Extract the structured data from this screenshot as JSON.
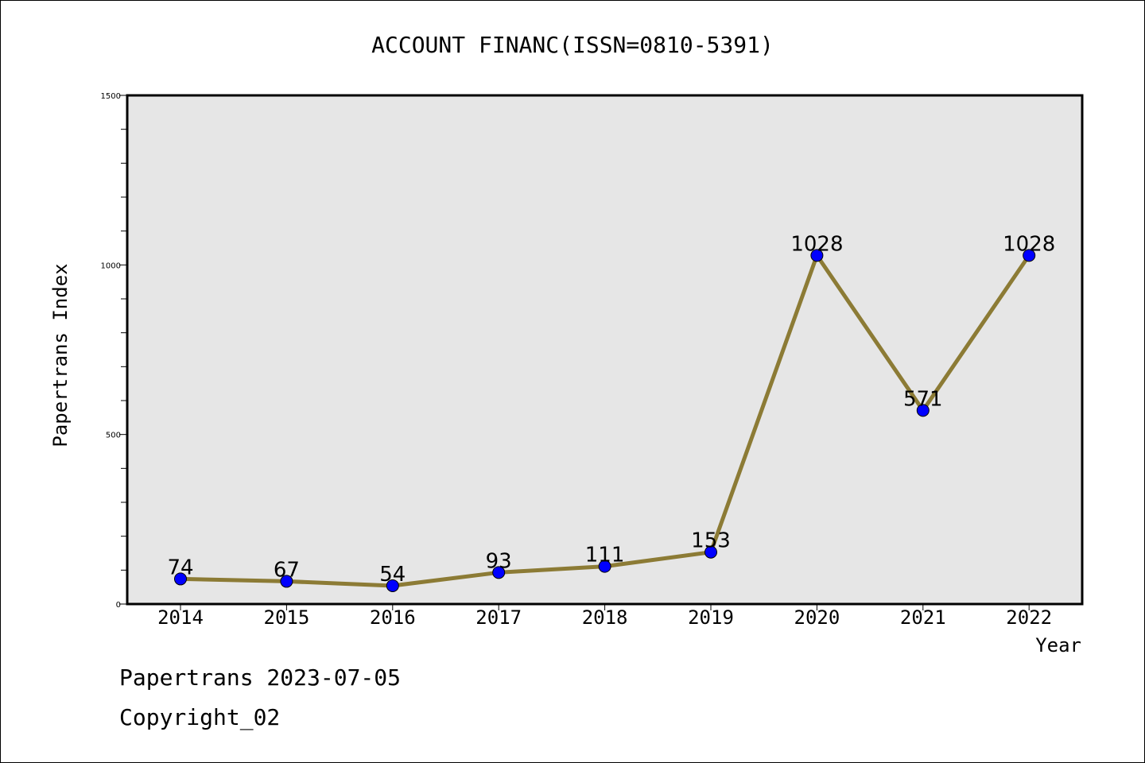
{
  "chart_data": {
    "type": "line",
    "title": "ACCOUNT FINANC(ISSN=0810-5391)",
    "xlabel": "Year",
    "ylabel": "Papertrans Index",
    "categories": [
      "2014",
      "2015",
      "2016",
      "2017",
      "2018",
      "2019",
      "2020",
      "2021",
      "2022"
    ],
    "series": [
      {
        "values": [
          74,
          67,
          54,
          93,
          111,
          153,
          1028,
          571,
          1028
        ]
      }
    ],
    "data_labels": [
      "74",
      "67",
      "54",
      "93",
      "111",
      "153",
      "1028",
      "571",
      "1028"
    ],
    "ylim": [
      0,
      1500
    ],
    "yticks": [
      0,
      500,
      1000,
      1500
    ],
    "ytick_labels": [
      "0",
      "500",
      "1000",
      "1500"
    ],
    "grid": false,
    "legend": "none",
    "colors": {
      "line": "#8c7b35",
      "marker": "#0000ff",
      "plot_background": "#e6e6e6"
    }
  },
  "footer": {
    "date_text": "Papertrans 2023-07-05",
    "copyright_text": "Copyright_02"
  }
}
